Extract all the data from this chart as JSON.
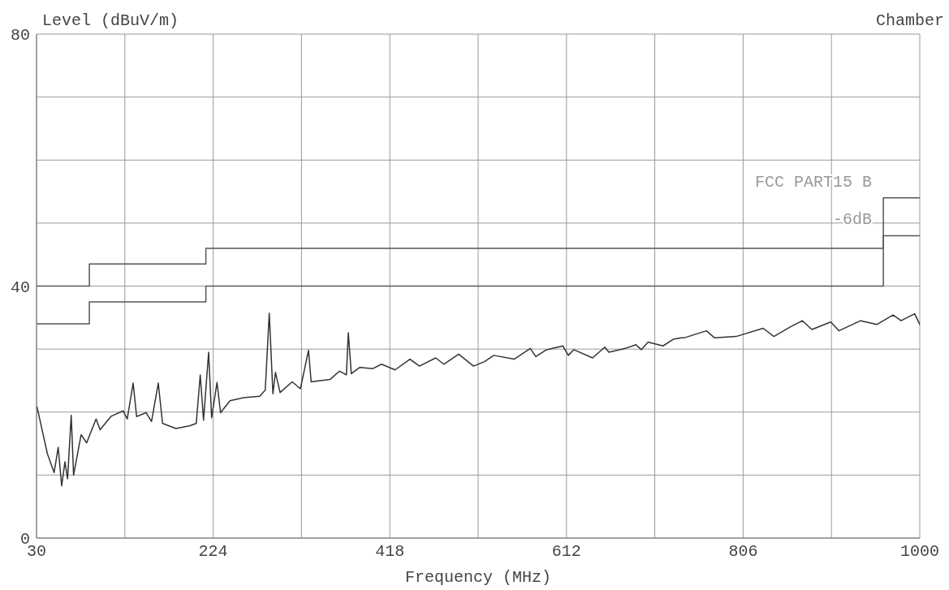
{
  "chart_data": {
    "type": "line",
    "xlabel": "Frequency (MHz)",
    "ylabel": "Level (dBuV/m)",
    "annotations": [
      "Chamber"
    ],
    "xlim": [
      30,
      1000
    ],
    "xticks": [
      30,
      {
        "value": 127,
        "label": null
      },
      224,
      {
        "value": 321,
        "label": null
      },
      418,
      {
        "value": 515,
        "label": null
      },
      612,
      {
        "value": 709,
        "label": null
      },
      806,
      {
        "value": 903,
        "label": null
      },
      1000
    ],
    "ylim": [
      0,
      80
    ],
    "yticks": [
      0,
      {
        "value": 10,
        "label": null
      },
      {
        "value": 20,
        "label": null
      },
      {
        "value": 30,
        "label": null
      },
      40,
      {
        "value": 50,
        "label": null
      },
      {
        "value": 60,
        "label": null
      },
      {
        "value": 70,
        "label": null
      },
      80
    ],
    "grid": true,
    "series": [
      {
        "type": "line",
        "color": "#333333",
        "x": [
          30.6,
          41.9,
          49.3,
          53.8,
          57.6,
          61.2,
          64.1,
          68.1,
          70.7,
          76.1,
          79,
          85,
          95.4,
          99.8,
          111.7,
          125.1,
          129.6,
          136.1,
          139.9,
          150.4,
          156.3,
          163.7,
          168.4,
          183.1,
          197.9,
          205.4,
          209.8,
          213.4,
          219,
          222.3,
          228.2,
          232.1,
          242.5,
          257.4,
          275.2,
          281.2,
          285.6,
          289.6,
          292.4,
          297.5,
          310.8,
          319.8,
          328.7,
          331.6,
          352.5,
          362.8,
          370.3,
          372.4,
          375.7,
          385.1,
          399.4,
          408.9,
          423.8,
          440.1,
          450.5,
          468.4,
          477.3,
          493.6,
          509.9,
          521.9,
          532.2,
          554.5,
          572.3,
          578.3,
          590.2,
          608,
          614,
          620,
          640.7,
          654.1,
          658.6,
          676.4,
          688.3,
          694.2,
          701.6,
          718,
          729.9,
          738.2,
          741.8,
          765.6,
          774.5,
          798.3,
          828,
          839.8,
          857.7,
          871.1,
          881.5,
          902.2,
          911.2,
          935,
          952.8,
          970.6,
          979.5,
          994.4,
          1000
        ],
        "values": [
          20.8,
          13.4,
          10.4,
          14.4,
          8.3,
          12.1,
          9.4,
          19.5,
          10.0,
          14.2,
          16.4,
          15.1,
          18.9,
          17.2,
          19.3,
          20.2,
          18.9,
          24.6,
          19.3,
          19.9,
          18.5,
          24.6,
          18.2,
          17.4,
          17.8,
          18.2,
          25.9,
          18.7,
          29.5,
          19.1,
          24.7,
          19.9,
          21.8,
          22.3,
          22.5,
          23.5,
          35.7,
          22.9,
          26.3,
          23.1,
          24.8,
          23.7,
          29.8,
          24.8,
          25.2,
          26.5,
          25.9,
          32.6,
          26.1,
          27.1,
          26.9,
          27.6,
          26.7,
          28.4,
          27.3,
          28.6,
          27.6,
          29.2,
          27.3,
          28.0,
          29.0,
          28.4,
          30.1,
          28.8,
          29.9,
          30.5,
          29.0,
          29.9,
          28.6,
          30.3,
          29.5,
          30.1,
          30.7,
          29.9,
          31.1,
          30.5,
          31.6,
          31.8,
          31.8,
          32.9,
          31.8,
          32.0,
          33.3,
          32.0,
          33.5,
          34.5,
          33.1,
          34.3,
          32.9,
          34.5,
          33.9,
          35.4,
          34.5,
          35.6,
          33.9
        ]
      },
      {
        "type": "step",
        "name": "FCC PART15 B",
        "color": "#555555",
        "x": [
          30,
          88,
          216,
          960,
          1000
        ],
        "values": [
          40,
          43.5,
          46,
          54,
          54
        ]
      },
      {
        "type": "step",
        "name": "-6dB",
        "color": "#555555",
        "x": [
          30,
          88,
          216,
          960,
          1000
        ],
        "values": [
          34,
          37.5,
          40,
          48,
          48
        ]
      }
    ]
  }
}
